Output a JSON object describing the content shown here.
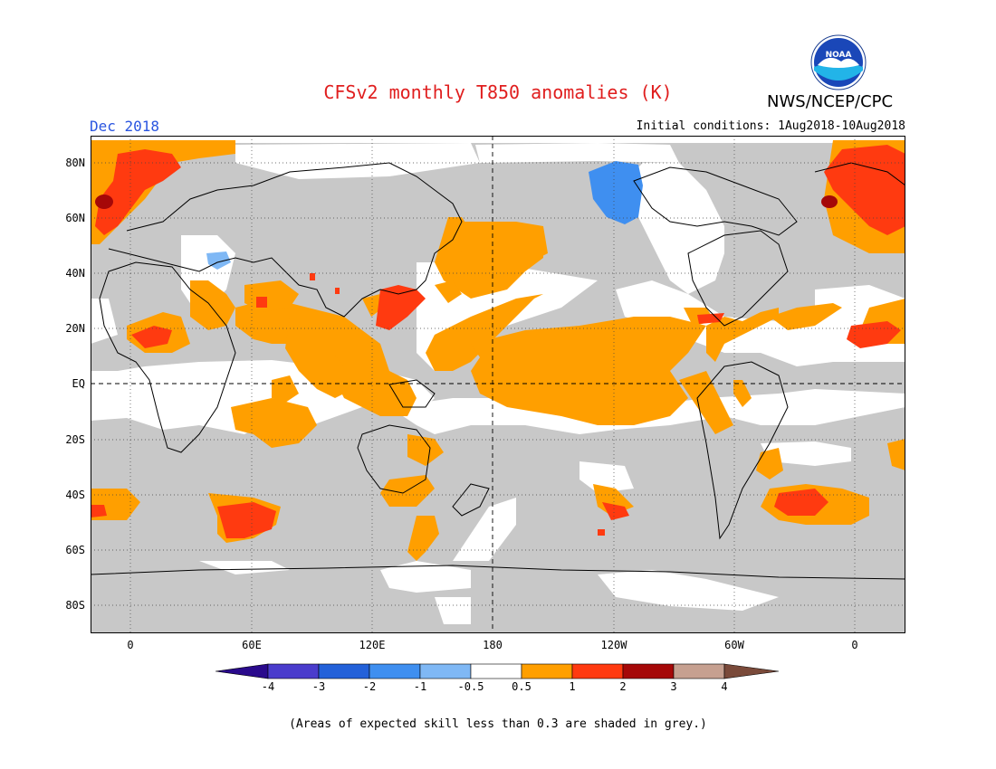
{
  "header": {
    "title": "CFSv2 monthly T850 anomalies (K)",
    "agency": "NWS/NCEP/CPC",
    "logo_text": "NOAA",
    "valid_month": "Dec 2018",
    "initial_conditions": "Initial conditions: 1Aug2018-10Aug2018"
  },
  "map": {
    "lat_labels": [
      "80N",
      "60N",
      "40N",
      "20N",
      "EQ",
      "20S",
      "40S",
      "60S",
      "80S"
    ],
    "lon_labels": [
      "0",
      "60E",
      "120E",
      "180",
      "120W",
      "60W",
      "0"
    ],
    "grid_style": "dotted",
    "mask_color": "#c8c8c8"
  },
  "colorbar": {
    "labels": [
      "-4",
      "-3",
      "-2",
      "-1",
      "-0.5",
      "0.5",
      "1",
      "2",
      "3",
      "4"
    ],
    "colors": [
      "#2a0a8c",
      "#4a3ccc",
      "#2361d9",
      "#3f8ff0",
      "#7fb8f5",
      "#ffffff",
      "#ff9f00",
      "#ff3a10",
      "#a50808",
      "#c6a090",
      "#7a4a3a"
    ]
  },
  "footnote": "(Areas of expected skill less than 0.3 are shaded in grey.)"
}
